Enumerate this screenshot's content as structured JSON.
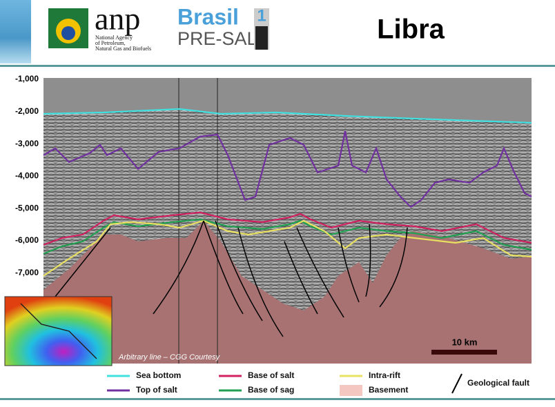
{
  "header": {
    "agency_short": "anp",
    "agency_name": [
      "National Agency",
      "of Petroleum,",
      "Natural Gas and Biofuels"
    ],
    "brand_1": "Brasil",
    "brand_2": "PRE-SALT",
    "brand_number": "1",
    "title": "Libra"
  },
  "figure": {
    "depth_labels": [
      "-1,000",
      "-2,000",
      "-3,000",
      "-4,000",
      "-5,000",
      "-6,000",
      "-7,000"
    ],
    "caption": "Arbitrary line – CGG Courtesy",
    "scale_label": "10 km"
  },
  "legend": {
    "items": [
      "Sea bottom",
      "Top of salt",
      "Base of salt",
      "Base of sag",
      "Intra-rift",
      "Basement",
      "Geological fault"
    ]
  }
}
